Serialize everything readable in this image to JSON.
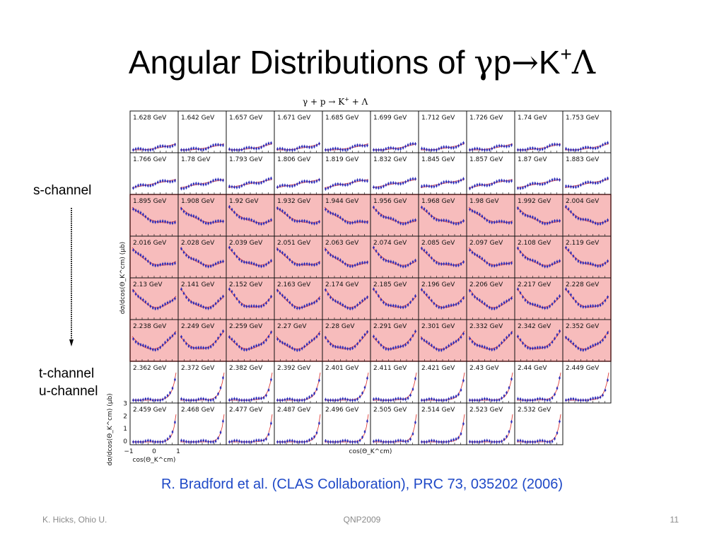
{
  "slide": {
    "title_prefix": "Angular Distributions of ",
    "title_gamma": "γ",
    "title_p": "p",
    "title_arrow": "→",
    "title_K": "K",
    "title_plus": "+",
    "title_lambda": "Λ",
    "plot_title_parts": [
      "γ + p ",
      "→",
      " K",
      "+",
      " + Λ"
    ],
    "labels": {
      "s_channel": "s-channel",
      "t_channel": "t-channel",
      "u_channel": "u-channel"
    },
    "reference": "R. Bradford et al. (CLAS Collaboration), PRC 73, 035202 (2006)",
    "footer": {
      "author": "K. Hicks, Ohio U.",
      "conference": "QNP2009",
      "page": "11"
    }
  },
  "colors": {
    "highlight_fill": "#f7bcbc",
    "highlight_border": "#d23a3a",
    "data_points": "#2a2ab8",
    "fit_curve": "#e0413c",
    "reference_text": "#1f49c7",
    "footer_text": "#8a8a8a"
  },
  "chart_data": {
    "type": "scatter",
    "ylabel_upper": "dσ/dcos(Θ_K^cm) (μb)",
    "ylabel_lower": "dσ/dcos(Θ_K^cm) (μb)",
    "xlabel": "cos(Θ_K^cm)",
    "xlabel_corner": "cos(Θ_K^cm)",
    "x_ticks": [
      "−1",
      "0",
      "1"
    ],
    "y_ticks": [
      "0",
      "1",
      "2",
      "3"
    ],
    "highlighted_rows": [
      2,
      3,
      4,
      5
    ],
    "energy_unit": "GeV",
    "rows": [
      [
        "1.628",
        "1.642",
        "1.657",
        "1.671",
        "1.685",
        "1.699",
        "1.712",
        "1.726",
        "1.74",
        "1.753"
      ],
      [
        "1.766",
        "1.78",
        "1.793",
        "1.806",
        "1.819",
        "1.832",
        "1.845",
        "1.857",
        "1.87",
        "1.883"
      ],
      [
        "1.895",
        "1.908",
        "1.92",
        "1.932",
        "1.944",
        "1.956",
        "1.968",
        "1.98",
        "1.992",
        "2.004"
      ],
      [
        "2.016",
        "2.028",
        "2.039",
        "2.051",
        "2.063",
        "2.074",
        "2.085",
        "2.097",
        "2.108",
        "2.119"
      ],
      [
        "2.13",
        "2.141",
        "2.152",
        "2.163",
        "2.174",
        "2.185",
        "2.196",
        "2.206",
        "2.217",
        "2.228"
      ],
      [
        "2.238",
        "2.249",
        "2.259",
        "2.27",
        "2.28",
        "2.291",
        "2.301",
        "2.332",
        "2.342",
        "2.352"
      ],
      [
        "2.362",
        "2.372",
        "2.382",
        "2.392",
        "2.401",
        "2.411",
        "2.421",
        "2.43",
        "2.44",
        "2.449"
      ],
      [
        "2.459",
        "2.468",
        "2.477",
        "2.487",
        "2.496",
        "2.505",
        "2.514",
        "2.523",
        "2.532"
      ]
    ]
  }
}
